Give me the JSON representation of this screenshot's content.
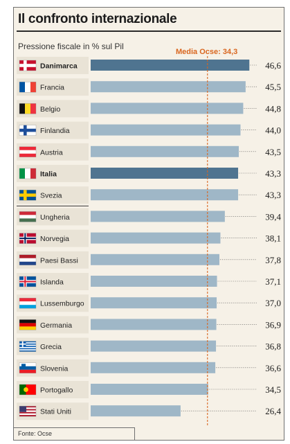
{
  "chart_data": {
    "type": "bar",
    "orientation": "horizontal",
    "title": "Il confronto internazionale",
    "subtitle": "Pressione fiscale in % sul Pil",
    "reference_line": {
      "label": "Media Ocse: 34,3",
      "value": 34.3,
      "color": "#d9661f"
    },
    "categories": [
      "Danimarca",
      "Francia",
      "Belgio",
      "Finlandia",
      "Austria",
      "Italia",
      "Svezia",
      "Ungheria",
      "Norvegia",
      "Paesi Bassi",
      "Islanda",
      "Lussemburgo",
      "Germania",
      "Grecia",
      "Slovenia",
      "Portogallo",
      "Stati Uniti"
    ],
    "values": [
      46.6,
      45.5,
      44.8,
      44.0,
      43.5,
      43.3,
      43.3,
      39.4,
      38.1,
      37.8,
      37.1,
      37.0,
      36.9,
      36.8,
      36.6,
      34.5,
      26.4
    ],
    "value_labels": [
      "46,6",
      "45,5",
      "44,8",
      "44,0",
      "43,5",
      "43,3",
      "43,3",
      "39,4",
      "38,1",
      "37,8",
      "37,1",
      "37,0",
      "36,9",
      "36,8",
      "36,6",
      "34,5",
      "26,4"
    ],
    "highlighted": [
      "Danimarca",
      "Italia"
    ],
    "flags": [
      "flag-denmark-icon",
      "flag-france-icon",
      "flag-belgium-icon",
      "flag-finland-icon",
      "flag-austria-icon",
      "flag-italy-icon",
      "flag-sweden-icon",
      "flag-hungary-icon",
      "flag-norway-icon",
      "flag-netherlands-icon",
      "flag-iceland-icon",
      "flag-luxembourg-icon",
      "flag-germany-icon",
      "flag-greece-icon",
      "flag-slovenia-icon",
      "flag-portugal-icon",
      "flag-usa-icon"
    ],
    "colors": {
      "bar": "#9fb7c7",
      "bar_highlight": "#4f7490",
      "label_bg": "#e9e3d6",
      "reference": "#d9661f"
    },
    "source": "Fonte: Ocse"
  }
}
